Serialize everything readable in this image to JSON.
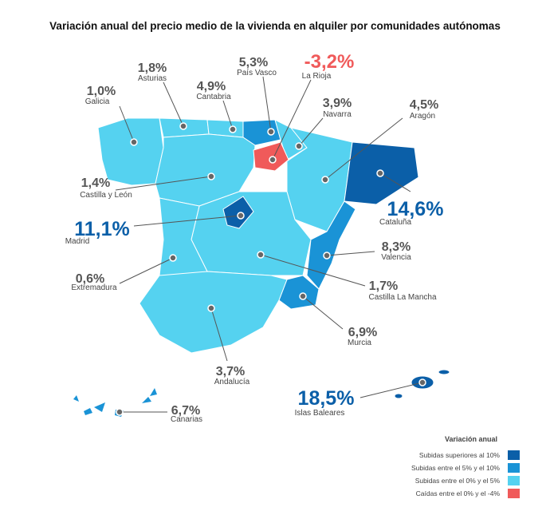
{
  "title": "Variación anual del precio medio de la vivienda en alquiler por comunidades autónomas",
  "regions": [
    {
      "name": "Galicia",
      "value": "1,0%"
    },
    {
      "name": "Asturias",
      "value": "1,8%"
    },
    {
      "name": "Cantabria",
      "value": "4,9%"
    },
    {
      "name": "País Vasco",
      "value": "5,3%"
    },
    {
      "name": "La Rioja",
      "value": "-3,2%"
    },
    {
      "name": "Navarra",
      "value": "3,9%"
    },
    {
      "name": "Aragón",
      "value": "4,5%"
    },
    {
      "name": "Cataluña",
      "value": "14,6%"
    },
    {
      "name": "Castilla y León",
      "value": "1,4%"
    },
    {
      "name": "Madrid",
      "value": "11,1%"
    },
    {
      "name": "Extremadura",
      "value": "0,6%"
    },
    {
      "name": "Valencia",
      "value": "8,3%"
    },
    {
      "name": "Castilla La Mancha",
      "value": "1,7%"
    },
    {
      "name": "Murcia",
      "value": "6,9%"
    },
    {
      "name": "Andalucía",
      "value": "3,7%"
    },
    {
      "name": "Canarias",
      "value": "6,7%"
    },
    {
      "name": "Islas Baleares",
      "value": "18,5%"
    }
  ],
  "legend": {
    "title": "Variación anual",
    "items": [
      "Subidas superiores al 10%",
      "Subidas entre el 5% y el 10%",
      "Subidas entre el 0% y el 5%",
      "Caídas entre el 0% y el -4%"
    ]
  }
}
